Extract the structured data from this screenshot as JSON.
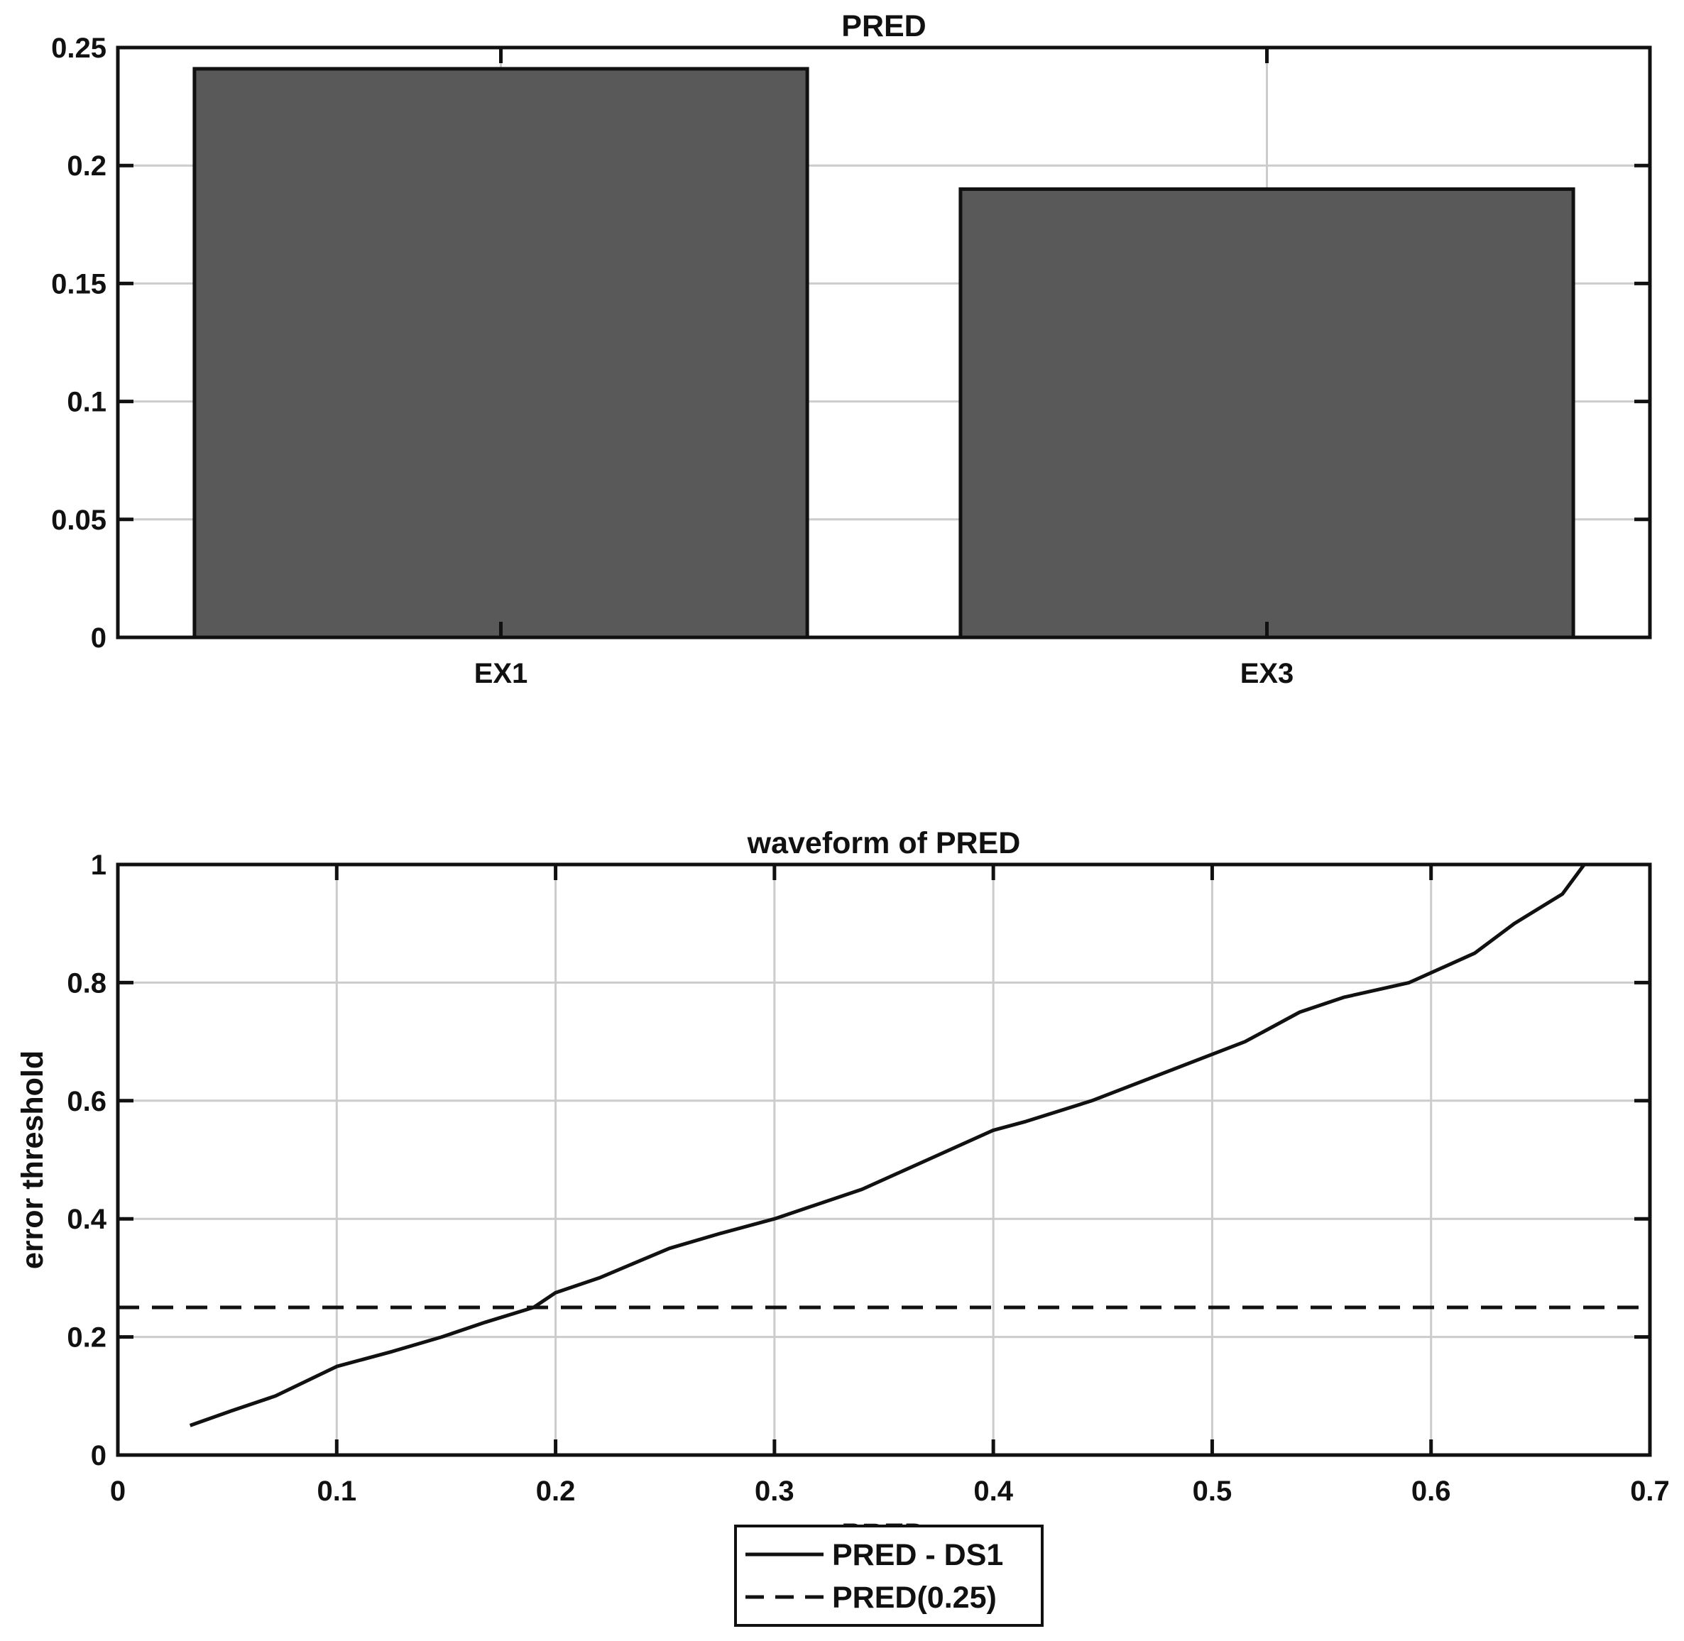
{
  "chart_data": [
    {
      "type": "bar",
      "title": "PRED",
      "categories": [
        "EX1",
        "EX3"
      ],
      "values": [
        0.241,
        0.19
      ],
      "xlabel": "",
      "ylabel": "",
      "ylim": [
        0,
        0.25
      ],
      "yticks": [
        0,
        0.05,
        0.1,
        0.15,
        0.2,
        0.25
      ],
      "ytick_labels": [
        "0",
        "0.05",
        "0.1",
        "0.15",
        "0.2",
        "0.25"
      ],
      "grid": true,
      "bar_color": "#595959"
    },
    {
      "type": "line",
      "title": "waveform of PRED",
      "xlabel": "PRED",
      "ylabel": "error threshold",
      "xlim": [
        0,
        0.7
      ],
      "ylim": [
        0,
        1
      ],
      "xticks": [
        0,
        0.1,
        0.2,
        0.3,
        0.4,
        0.5,
        0.6,
        0.7
      ],
      "xtick_labels": [
        "0",
        "0.1",
        "0.2",
        "0.3",
        "0.4",
        "0.5",
        "0.6",
        "0.7"
      ],
      "yticks": [
        0,
        0.2,
        0.4,
        0.6,
        0.8,
        1
      ],
      "ytick_labels": [
        "0",
        "0.2",
        "0.4",
        "0.6",
        "0.8",
        "1"
      ],
      "grid": true,
      "legend_position": "bottom-outside",
      "series": [
        {
          "name": "PRED - DS1",
          "style": "solid",
          "color": "#111111",
          "points": [
            [
              0.033,
              0.05
            ],
            [
              0.052,
              0.075
            ],
            [
              0.072,
              0.1
            ],
            [
              0.1,
              0.15
            ],
            [
              0.125,
              0.175
            ],
            [
              0.148,
              0.2
            ],
            [
              0.168,
              0.225
            ],
            [
              0.19,
              0.25
            ],
            [
              0.2,
              0.275
            ],
            [
              0.22,
              0.3
            ],
            [
              0.252,
              0.35
            ],
            [
              0.275,
              0.375
            ],
            [
              0.3,
              0.4
            ],
            [
              0.34,
              0.45
            ],
            [
              0.37,
              0.5
            ],
            [
              0.4,
              0.55
            ],
            [
              0.415,
              0.565
            ],
            [
              0.445,
              0.6
            ],
            [
              0.48,
              0.65
            ],
            [
              0.515,
              0.7
            ],
            [
              0.54,
              0.75
            ],
            [
              0.56,
              0.775
            ],
            [
              0.59,
              0.8
            ],
            [
              0.62,
              0.85
            ],
            [
              0.638,
              0.9
            ],
            [
              0.66,
              0.95
            ],
            [
              0.67,
              1.0
            ]
          ]
        },
        {
          "name": "PRED(0.25)",
          "style": "dashed",
          "color": "#111111",
          "points": [
            [
              0,
              0.25
            ],
            [
              0.7,
              0.25
            ]
          ]
        }
      ]
    }
  ]
}
